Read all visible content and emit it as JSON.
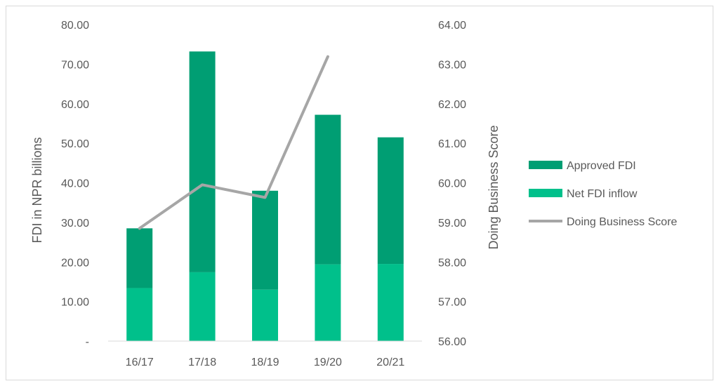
{
  "chart_data": {
    "type": "bar",
    "stacked": true,
    "categories": [
      "16/17",
      "17/18",
      "18/19",
      "19/20",
      "20/21"
    ],
    "series": [
      {
        "name": "Net FDI inflow",
        "type": "bar",
        "axis": "left",
        "color": "#00C08B",
        "values": [
          13.4,
          17.4,
          13.0,
          19.4,
          19.5
        ]
      },
      {
        "name": "Approved FDI",
        "type": "bar",
        "axis": "left",
        "color": "#009E73",
        "values": [
          15.1,
          55.8,
          25.0,
          37.8,
          32.0
        ]
      },
      {
        "name": "Doing Business Score",
        "type": "line",
        "axis": "right",
        "color": "#A6A6A6",
        "values": [
          58.85,
          59.95,
          59.63,
          63.19,
          null
        ]
      }
    ],
    "left_axis": {
      "label": "FDI in NPR billions",
      "ylim": [
        0,
        80
      ],
      "ticks": [
        "-",
        "10.00",
        "20.00",
        "30.00",
        "40.00",
        "50.00",
        "60.00",
        "70.00",
        "80.00"
      ]
    },
    "right_axis": {
      "label": "Doing Business Score",
      "ylim": [
        56,
        64
      ],
      "ticks": [
        "56.00",
        "57.00",
        "58.00",
        "59.00",
        "60.00",
        "61.00",
        "62.00",
        "63.00",
        "64.00"
      ]
    },
    "legend": {
      "position": "right",
      "entries": [
        "Approved FDI",
        "Net FDI inflow",
        "Doing Business Score"
      ]
    },
    "grid": false
  }
}
